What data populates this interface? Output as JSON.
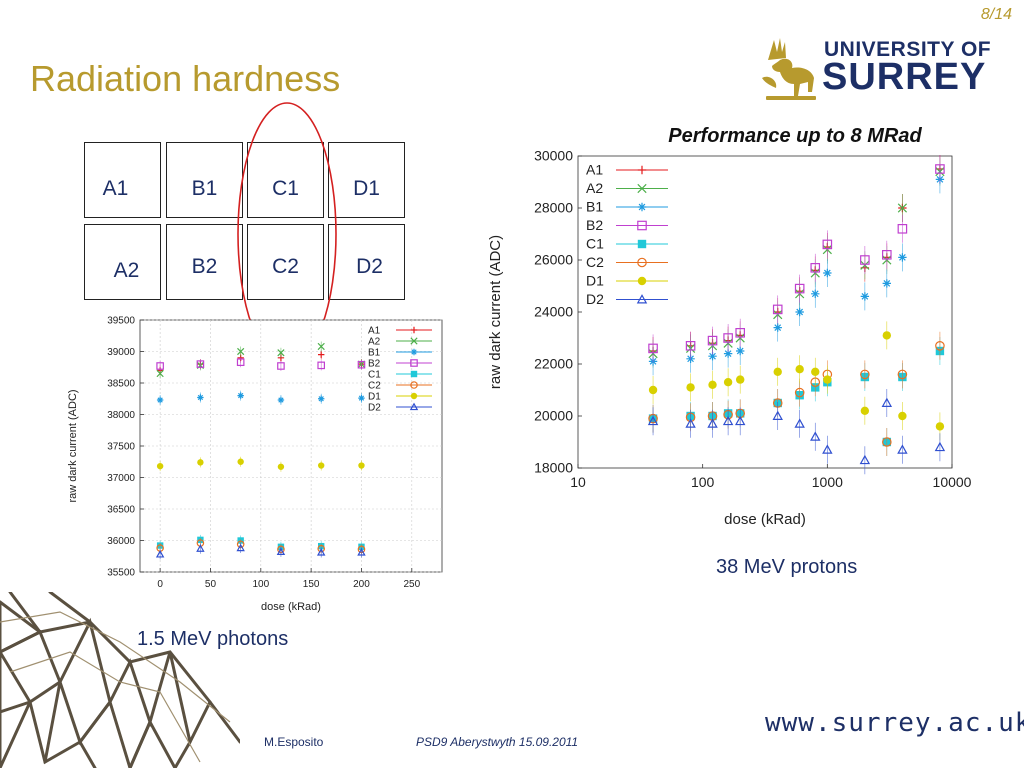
{
  "slide": {
    "page": "8/14",
    "title": "Radiation hardness"
  },
  "logo": {
    "line1": "UNIVERSITY OF",
    "line2": "SURREY"
  },
  "grid": {
    "row1": [
      "A1",
      "B1",
      "C1",
      "D1"
    ],
    "row2": [
      "A2",
      "B2",
      "C2",
      "D2"
    ]
  },
  "captions": {
    "photons": "1.5 MeV photons",
    "protons": "38 MeV protons"
  },
  "footer": {
    "author": "M.Esposito",
    "conference": "PSD9 Aberystwyth 15.09.2011",
    "url": "www.surrey.ac.uk"
  },
  "colors": {
    "accent": "#b79a2e",
    "text": "#1d2f66",
    "highlight": "#d42020"
  },
  "chart_data": [
    {
      "type": "scatter",
      "title": "",
      "xlabel": "dose (kRad)",
      "ylabel": "raw dark current (ADC)",
      "xlim": [
        -20,
        280
      ],
      "ylim": [
        35500,
        39500
      ],
      "xticks": [
        0,
        50,
        100,
        150,
        200,
        250
      ],
      "yticks": [
        35500,
        36000,
        36500,
        37000,
        37500,
        38000,
        38500,
        39000,
        39500
      ],
      "grid": true,
      "legend": "top-right",
      "x": [
        0,
        40,
        80,
        120,
        160,
        200
      ],
      "series": [
        {
          "name": "A1",
          "color": "#e41a1c",
          "marker": "plus",
          "values": [
            38700,
            38800,
            38900,
            38900,
            38950,
            38800
          ]
        },
        {
          "name": "A2",
          "color": "#4daf4a",
          "marker": "cross",
          "values": [
            38650,
            38780,
            39000,
            38980,
            39080,
            38800
          ]
        },
        {
          "name": "B1",
          "color": "#1f9be0",
          "marker": "star",
          "values": [
            38230,
            38270,
            38300,
            38230,
            38250,
            38260
          ]
        },
        {
          "name": "B2",
          "color": "#c040d0",
          "marker": "square",
          "values": [
            38770,
            38800,
            38830,
            38770,
            38780,
            38790
          ]
        },
        {
          "name": "C1",
          "color": "#20c8d8",
          "marker": "fsquare",
          "values": [
            35920,
            36010,
            36000,
            35900,
            35910,
            35900
          ]
        },
        {
          "name": "C2",
          "color": "#e87020",
          "marker": "circle",
          "values": [
            35880,
            35960,
            35940,
            35860,
            35870,
            35860
          ]
        },
        {
          "name": "D1",
          "color": "#d8d000",
          "marker": "fcircle",
          "values": [
            37180,
            37240,
            37250,
            37170,
            37190,
            37190
          ]
        },
        {
          "name": "D2",
          "color": "#3050d0",
          "marker": "triangle",
          "values": [
            35780,
            35870,
            35880,
            35820,
            35810,
            35810
          ]
        }
      ]
    },
    {
      "type": "scatter",
      "title": "Performance up to 8 MRad",
      "xlabel": "dose (kRad)",
      "ylabel": "raw dark current (ADC)",
      "xscale": "log",
      "xlim": [
        10,
        10000
      ],
      "ylim": [
        18000,
        30000
      ],
      "xticks": [
        10,
        100,
        1000,
        10000
      ],
      "yticks": [
        18000,
        20000,
        22000,
        24000,
        26000,
        28000,
        30000
      ],
      "grid": false,
      "legend": "top-left",
      "x": [
        40,
        80,
        120,
        160,
        200,
        400,
        600,
        800,
        1000,
        2000,
        3000,
        4000,
        8000
      ],
      "series": [
        {
          "name": "A1",
          "color": "#e41a1c",
          "marker": "plus",
          "values": [
            22500,
            22700,
            22800,
            22900,
            23100,
            24000,
            24800,
            25600,
            26500,
            25700,
            26100,
            28000,
            29500
          ]
        },
        {
          "name": "A2",
          "color": "#4daf4a",
          "marker": "cross",
          "values": [
            22400,
            22600,
            22700,
            22800,
            23000,
            23900,
            24700,
            25500,
            26400,
            25800,
            26000,
            28000,
            29400
          ]
        },
        {
          "name": "B1",
          "color": "#1f9be0",
          "marker": "star",
          "values": [
            22100,
            22200,
            22300,
            22400,
            22500,
            23400,
            24000,
            24700,
            25500,
            24600,
            25100,
            26100,
            29100
          ]
        },
        {
          "name": "B2",
          "color": "#c040d0",
          "marker": "square",
          "values": [
            22600,
            22700,
            22900,
            23000,
            23200,
            24100,
            24900,
            25700,
            26600,
            26000,
            26200,
            27200,
            29500
          ]
        },
        {
          "name": "C1",
          "color": "#20c8d8",
          "marker": "fsquare",
          "values": [
            19900,
            20000,
            20000,
            20100,
            20100,
            20500,
            20800,
            21100,
            21300,
            21500,
            19000,
            21500,
            22500
          ]
        },
        {
          "name": "C2",
          "color": "#e87020",
          "marker": "circle",
          "values": [
            19900,
            19950,
            20000,
            20050,
            20100,
            20500,
            20900,
            21300,
            21600,
            21600,
            19000,
            21600,
            22700
          ]
        },
        {
          "name": "D1",
          "color": "#d8d000",
          "marker": "fcircle",
          "values": [
            21000,
            21100,
            21200,
            21300,
            21400,
            21700,
            21800,
            21700,
            21400,
            20200,
            23100,
            20000,
            19600
          ]
        },
        {
          "name": "D2",
          "color": "#3050d0",
          "marker": "triangle",
          "values": [
            19800,
            19700,
            19700,
            19800,
            19800,
            20000,
            19700,
            19200,
            18700,
            18300,
            20500,
            18700,
            18800
          ]
        }
      ]
    }
  ]
}
